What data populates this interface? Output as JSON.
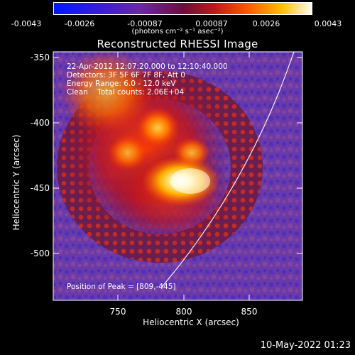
{
  "colorbar": {
    "ticks": [
      "-0.0043",
      "-0.0026",
      "-0.00087",
      "0.00087",
      "0.0026",
      "0.0043"
    ],
    "units": "(photons cm⁻² s⁻¹ asec⁻²)"
  },
  "chart_data": {
    "type": "heatmap",
    "title": "Reconstructed RHESSI Image",
    "xlabel": "Heliocentric X (arcsec)",
    "ylabel": "Heliocentric Y (arcsec)",
    "x_ticks": [
      "750",
      "800",
      "850"
    ],
    "y_ticks": [
      "-350",
      "-400",
      "-450",
      "-500"
    ],
    "xlim": [
      706,
      894
    ],
    "ylim": [
      -540,
      -345
    ],
    "color_range": [
      -0.0043,
      0.0043
    ],
    "peak": [
      809,
      -445
    ],
    "annotations": {
      "time": "22-Apr-2012 12:07:20.000 to 12:10:40.000",
      "detectors": "Detectors: 3F 5F 6F 7F 8F, Att 0",
      "energy": "Energy Range: 6.0 - 12.0 keV",
      "clean": "Clean    Total counts: 2.06E+04",
      "peak_label": "Position of Peak = [809,-445]"
    }
  },
  "footer": {
    "date": "10-May-2022 01:23"
  }
}
